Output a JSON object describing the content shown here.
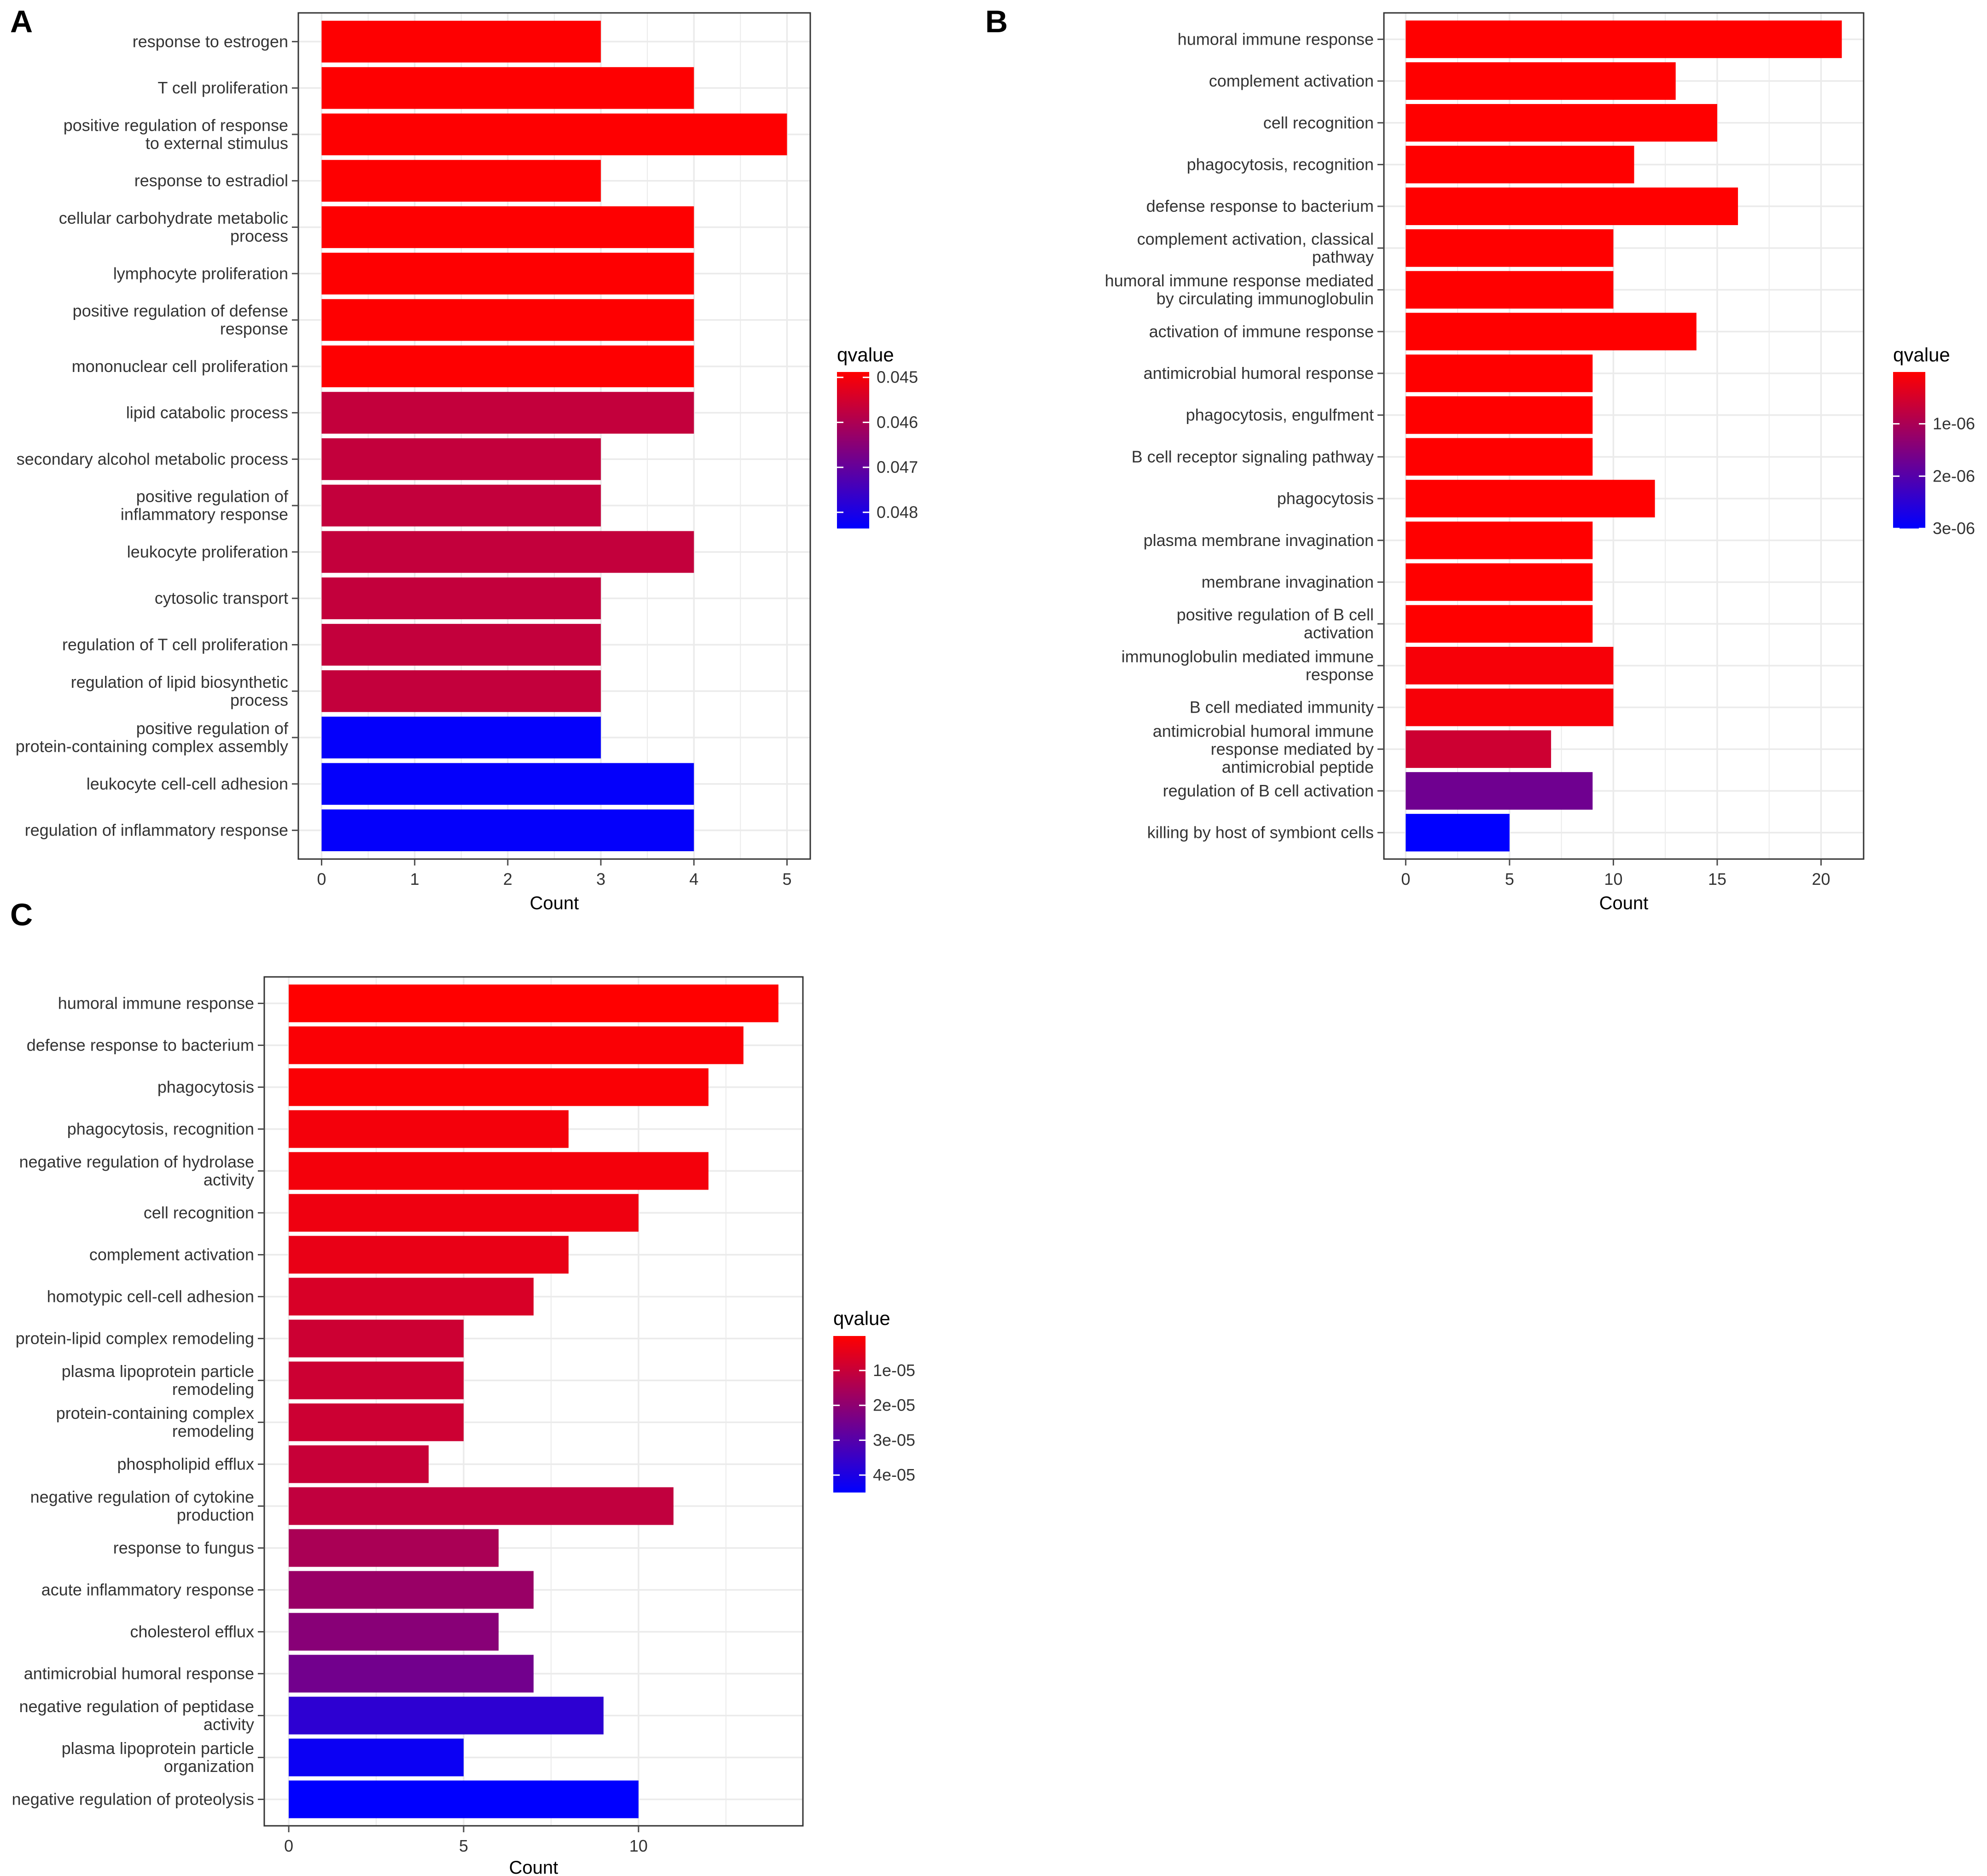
{
  "figure": {
    "axis_label": "Count",
    "legend_title": "qvalue",
    "colors": {
      "low_q": "#ff0000",
      "high_q": "#0000ff",
      "panel_border": "#333333",
      "grid": "#ebebeb",
      "text": "#333333",
      "tick": "#4d4d4d"
    }
  },
  "chart_data": [
    {
      "panel": "A",
      "type": "bar",
      "orientation": "horizontal",
      "xlabel": "Count",
      "xlim": [
        -0.25,
        5.25
      ],
      "xticks": [
        0,
        1,
        2,
        3,
        4,
        5
      ],
      "xtick_labels": [
        "0",
        "1",
        "2",
        "3",
        "4",
        "5"
      ],
      "legend_title": "qvalue",
      "legend_range": [
        0.04488,
        0.04836
      ],
      "legend_ticks": [
        0.045,
        0.046,
        0.047,
        0.048
      ],
      "legend_tick_labels": [
        "0.045",
        "0.046",
        "0.047",
        "0.048"
      ],
      "categories": [
        "response to estrogen",
        "T cell proliferation",
        "positive regulation of response\nto external stimulus",
        "response to estradiol",
        "cellular carbohydrate metabolic\nprocess",
        "lymphocyte proliferation",
        "positive regulation of defense\nresponse",
        "mononuclear cell proliferation",
        "lipid catabolic process",
        "secondary alcohol metabolic process",
        "positive regulation of\ninflammatory response",
        "leukocyte proliferation",
        "cytosolic transport",
        "regulation of T cell proliferation",
        "regulation of lipid biosynthetic\nprocess",
        "positive regulation of\nprotein-containing complex assembly",
        "leukocyte cell-cell adhesion",
        "regulation of inflammatory response"
      ],
      "values": [
        3,
        4,
        5,
        3,
        4,
        4,
        4,
        4,
        4,
        3,
        3,
        4,
        3,
        3,
        3,
        3,
        4,
        4
      ],
      "qvalues": [
        0.0449,
        0.0449,
        0.0449,
        0.0449,
        0.0449,
        0.0449,
        0.0449,
        0.0449,
        0.0457,
        0.0457,
        0.0457,
        0.0457,
        0.0457,
        0.0457,
        0.0457,
        0.0483,
        0.0483,
        0.0483
      ]
    },
    {
      "panel": "B",
      "type": "bar",
      "orientation": "horizontal",
      "xlabel": "Count",
      "xlim": [
        -1.05,
        22.05
      ],
      "xticks": [
        0,
        5,
        10,
        15,
        20
      ],
      "xtick_labels": [
        "0",
        "5",
        "10",
        "15",
        "20"
      ],
      "legend_title": "qvalue",
      "legend_range": [
        1e-08,
        3e-06
      ],
      "legend_ticks": [
        1e-06,
        2e-06,
        3e-06
      ],
      "legend_tick_labels": [
        "1e-06",
        "2e-06",
        "3e-06"
      ],
      "categories": [
        "humoral immune response",
        "complement activation",
        "cell recognition",
        "phagocytosis, recognition",
        "defense response to bacterium",
        "complement activation, classical\npathway",
        "humoral immune response mediated\nby circulating immunoglobulin",
        "activation of immune response",
        "antimicrobial humoral response",
        "phagocytosis, engulfment",
        "B cell receptor signaling pathway",
        "phagocytosis",
        "plasma membrane invagination",
        "membrane invagination",
        "positive regulation of B cell\nactivation",
        "immunoglobulin mediated immune\nresponse",
        "B cell mediated immunity",
        "antimicrobial humoral immune\nresponse mediated by\nantimicrobial peptide",
        "regulation of B cell activation",
        "killing by host of symbiont cells"
      ],
      "values": [
        21,
        13,
        15,
        11,
        16,
        10,
        10,
        14,
        9,
        9,
        9,
        12,
        9,
        9,
        9,
        10,
        10,
        7,
        9,
        5
      ],
      "qvalues": [
        1e-08,
        1e-08,
        1e-08,
        1e-08,
        1e-08,
        1e-08,
        1e-08,
        1e-08,
        1e-08,
        1e-08,
        1e-08,
        1e-08,
        1e-08,
        1e-08,
        1e-08,
        1e-07,
        1e-07,
        6e-07,
        1.7e-06,
        3e-06
      ]
    },
    {
      "panel": "C",
      "type": "bar",
      "orientation": "horizontal",
      "xlabel": "Count",
      "xlim": [
        -0.7,
        14.7
      ],
      "xticks": [
        0,
        5,
        10
      ],
      "xtick_labels": [
        "0",
        "5",
        "10"
      ],
      "legend_title": "qvalue",
      "legend_range": [
        1e-07,
        4.5e-05
      ],
      "legend_ticks": [
        1e-05,
        2e-05,
        3e-05,
        4e-05
      ],
      "legend_tick_labels": [
        "1e-05",
        "2e-05",
        "3e-05",
        "4e-05"
      ],
      "categories": [
        "humoral immune response",
        "defense response to bacterium",
        "phagocytosis",
        "phagocytosis, recognition",
        "negative regulation of hydrolase\nactivity",
        "cell recognition",
        "complement activation",
        "homotypic cell-cell adhesion",
        "protein-lipid complex remodeling",
        "plasma lipoprotein particle\nremodeling",
        "protein-containing complex\nremodeling",
        "phospholipid efflux",
        "negative regulation of cytokine\nproduction",
        "response to fungus",
        "acute inflammatory response",
        "cholesterol efflux",
        "antimicrobial humoral response",
        "negative regulation of peptidase\nactivity",
        "plasma lipoprotein particle\norganization",
        "negative regulation of proteolysis"
      ],
      "values": [
        14,
        13,
        12,
        8,
        12,
        10,
        8,
        7,
        5,
        5,
        5,
        4,
        11,
        6,
        7,
        6,
        7,
        9,
        5,
        10
      ],
      "qvalues": [
        1e-07,
        1e-06,
        1e-06,
        2e-06,
        2e-06,
        3e-06,
        4e-06,
        7e-06,
        9e-06,
        9e-06,
        9e-06,
        1e-05,
        1.1e-05,
        1.5e-05,
        1.8e-05,
        2.1e-05,
        2.5e-05,
        3.7e-05,
        4.3e-05,
        4.5e-05
      ]
    }
  ],
  "panel_letters": [
    "A",
    "B",
    "C"
  ]
}
